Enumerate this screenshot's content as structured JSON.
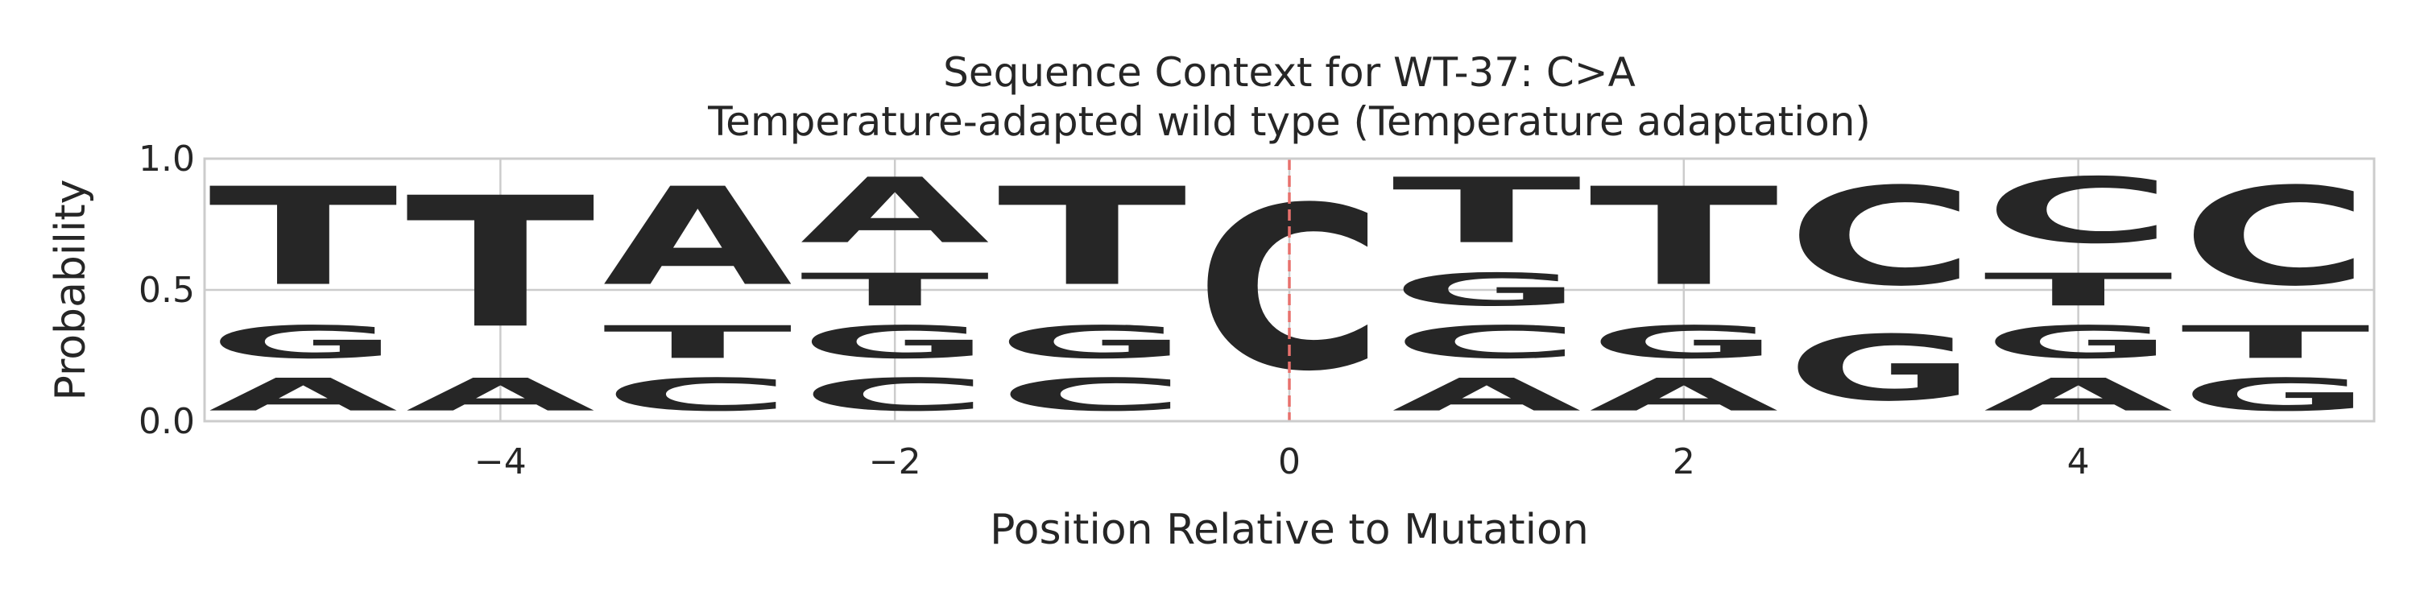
{
  "chart_data": {
    "type": "sequence_logo",
    "title": "Sequence Context for WT-37: C>A",
    "subtitle": "Temperature-adapted wild type (Temperature adaptation)",
    "xlabel": "Position Relative to Mutation",
    "ylabel": "Probability",
    "xlim": [
      -5.5,
      5.5
    ],
    "ylim": [
      0,
      1
    ],
    "x_ticks": [
      -4,
      -2,
      0,
      2,
      4
    ],
    "x_tick_labels": [
      "−4",
      "−2",
      "0",
      "2",
      "4"
    ],
    "y_ticks": [
      0,
      0.5,
      1
    ],
    "y_tick_labels": [
      "0.0",
      "0.5",
      "1.0"
    ],
    "grid": true,
    "mutation_marker": {
      "x": 0,
      "style": "dashed",
      "color": "#e8716d"
    },
    "base_colors": {
      "A": "#008000",
      "C": "#0000ff",
      "G": "#ffa500",
      "T": "#ff0000"
    },
    "positions": [
      -5,
      -4,
      -3,
      -2,
      -1,
      0,
      1,
      2,
      3,
      4,
      5
    ],
    "stacks": [
      {
        "position": -5,
        "letters": [
          {
            "base": "A",
            "p": 0.2
          },
          {
            "base": "G",
            "p": 0.2
          },
          {
            "base": "T",
            "p": 0.6
          }
        ]
      },
      {
        "position": -4,
        "letters": [
          {
            "base": "A",
            "p": 0.2
          },
          {
            "base": "T",
            "p": 0.8
          }
        ]
      },
      {
        "position": -3,
        "letters": [
          {
            "base": "C",
            "p": 0.2
          },
          {
            "base": "T",
            "p": 0.2
          },
          {
            "base": "A",
            "p": 0.6
          }
        ]
      },
      {
        "position": -2,
        "letters": [
          {
            "base": "C",
            "p": 0.2
          },
          {
            "base": "G",
            "p": 0.2
          },
          {
            "base": "T",
            "p": 0.2
          },
          {
            "base": "A",
            "p": 0.4
          }
        ]
      },
      {
        "position": -1,
        "letters": [
          {
            "base": "C",
            "p": 0.2
          },
          {
            "base": "G",
            "p": 0.2
          },
          {
            "base": "T",
            "p": 0.6
          }
        ]
      },
      {
        "position": 0,
        "letters": [
          {
            "base": "C",
            "p": 1.0
          }
        ]
      },
      {
        "position": 1,
        "letters": [
          {
            "base": "A",
            "p": 0.2
          },
          {
            "base": "C",
            "p": 0.2
          },
          {
            "base": "G",
            "p": 0.2
          },
          {
            "base": "T",
            "p": 0.4
          }
        ]
      },
      {
        "position": 2,
        "letters": [
          {
            "base": "A",
            "p": 0.2
          },
          {
            "base": "G",
            "p": 0.2
          },
          {
            "base": "T",
            "p": 0.6
          }
        ]
      },
      {
        "position": 3,
        "letters": [
          {
            "base": "G",
            "p": 0.4
          },
          {
            "base": "C",
            "p": 0.6
          }
        ]
      },
      {
        "position": 4,
        "letters": [
          {
            "base": "A",
            "p": 0.2
          },
          {
            "base": "G",
            "p": 0.2
          },
          {
            "base": "T",
            "p": 0.2
          },
          {
            "base": "C",
            "p": 0.4
          }
        ]
      },
      {
        "position": 5,
        "letters": [
          {
            "base": "G",
            "p": 0.2
          },
          {
            "base": "T",
            "p": 0.2
          },
          {
            "base": "C",
            "p": 0.6
          }
        ]
      }
    ]
  }
}
